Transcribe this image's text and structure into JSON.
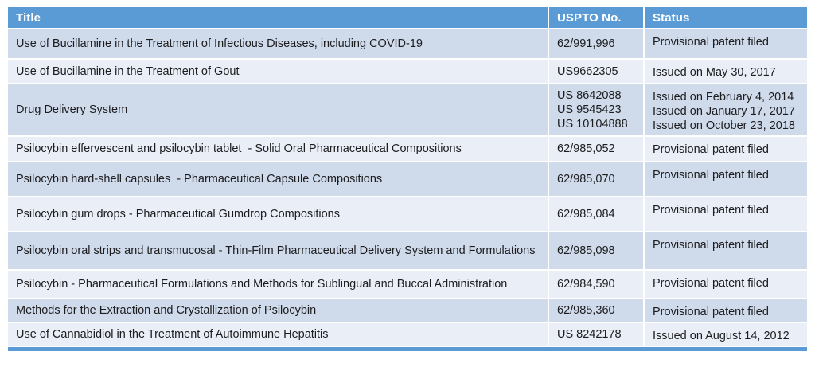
{
  "colors": {
    "header_bg": "#5b9bd5",
    "header_text": "#ffffff",
    "band_dark": "#cfdaeb",
    "band_light": "#e9eef7",
    "body_text": "#1d1d1f",
    "bar": "#5b9bd5"
  },
  "chart_data": {
    "type": "table",
    "columns": [
      "Title",
      "USPTO No.",
      "Status"
    ],
    "rows": [
      [
        "Use of Bucillamine in the Treatment of Infectious Diseases, including COVID-19",
        "62/991,996",
        "Provisional patent filed"
      ],
      [
        "Use of Bucillamine in the Treatment of Gout",
        "US9662305",
        "Issued on May 30, 2017"
      ],
      [
        "Drug Delivery System",
        "US 8642088\nUS 9545423\nUS 10104888",
        "Issued on February 4, 2014\nIssued on January 17, 2017\nIssued on October 23, 2018"
      ],
      [
        "Psilocybin effervescent and psilocybin tablet  - Solid Oral Pharmaceutical Compositions",
        "62/985,052",
        "Provisional patent filed"
      ],
      [
        "Psilocybin hard-shell capsules  - Pharmaceutical Capsule Compositions",
        "62/985,070",
        "Provisional patent filed"
      ],
      [
        "Psilocybin gum drops - Pharmaceutical Gumdrop Compositions",
        "62/985,084",
        "Provisional patent filed"
      ],
      [
        "Psilocybin oral strips and transmucosal - Thin-Film Pharmaceutical Delivery System and Formulations",
        "62/985,098",
        "Provisional patent filed"
      ],
      [
        "Psilocybin - Pharmaceutical Formulations and Methods for Sublingual and Buccal Administration",
        "62/984,590",
        "Provisional patent filed"
      ],
      [
        "Methods for the Extraction and Crystallization of Psilocybin",
        "62/985,360",
        "Provisional patent filed"
      ],
      [
        "Use of Cannabidiol in the Treatment of Autoimmune Hepatitis",
        "US 8242178",
        "Issued on August 14, 2012"
      ]
    ]
  }
}
